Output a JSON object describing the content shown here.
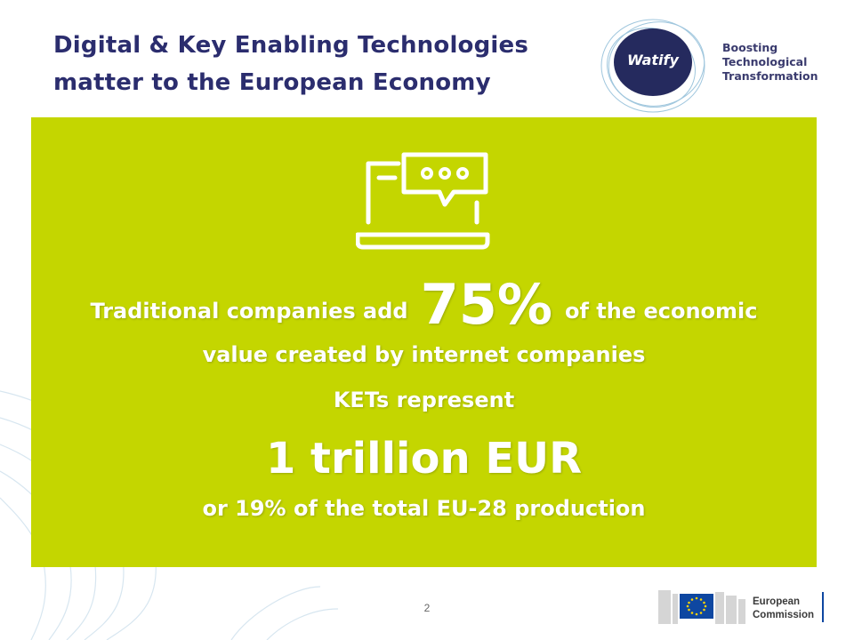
{
  "slide": {
    "title_line1": "Digital & Key Enabling Technologies",
    "title_line2": "matter to the European Economy",
    "page_number": "2"
  },
  "logo": {
    "word": "Watify",
    "tagline_line1": "Boosting",
    "tagline_line2": "Technological",
    "tagline_line3": "Transformation"
  },
  "panel": {
    "color": "#c4d600",
    "icon": "laptop-chat-icon",
    "stat1_prefix": "Traditional companies add",
    "stat1_value": "75%",
    "stat1_suffix": "of the economic",
    "stat1_line2": "value created by internet companies",
    "stat2_prefix": "KETs represent",
    "stat2_value": "1 trillion EUR",
    "stat2_suffix": "or 19% of the total EU-28 production"
  },
  "footer": {
    "ec_line1": "European",
    "ec_line2": "Commission"
  }
}
